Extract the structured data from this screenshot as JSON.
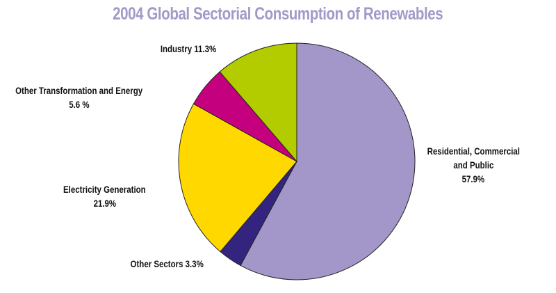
{
  "chart_data": {
    "type": "pie",
    "title": "2004 Global Sectorial Consumption of Renewables",
    "start_angle": "12 o'clock",
    "direction": "clockwise",
    "slices": [
      {
        "label": "Residential, Commercial and Public",
        "value": 57.9,
        "label_lines": [
          "Residential, Commercial",
          "and Public",
          "57.9%"
        ],
        "color": "#a396c8"
      },
      {
        "label": "Other Sectors",
        "value": 3.3,
        "label_lines": [
          "Other Sectors 3.3%"
        ],
        "color": "#33257f"
      },
      {
        "label": "Electricity Generation",
        "value": 21.9,
        "label_lines": [
          "Electricity Generation",
          "21.9%"
        ],
        "color": "#ffd800"
      },
      {
        "label": "Other Transformation and Energy",
        "value": 5.6,
        "label_lines": [
          "Other Transformation and Energy",
          "5.6 %"
        ],
        "color": "#c4007f"
      },
      {
        "label": "Industry",
        "value": 11.3,
        "label_lines": [
          "Industry 11.3%"
        ],
        "color": "#b3cc00"
      }
    ]
  }
}
